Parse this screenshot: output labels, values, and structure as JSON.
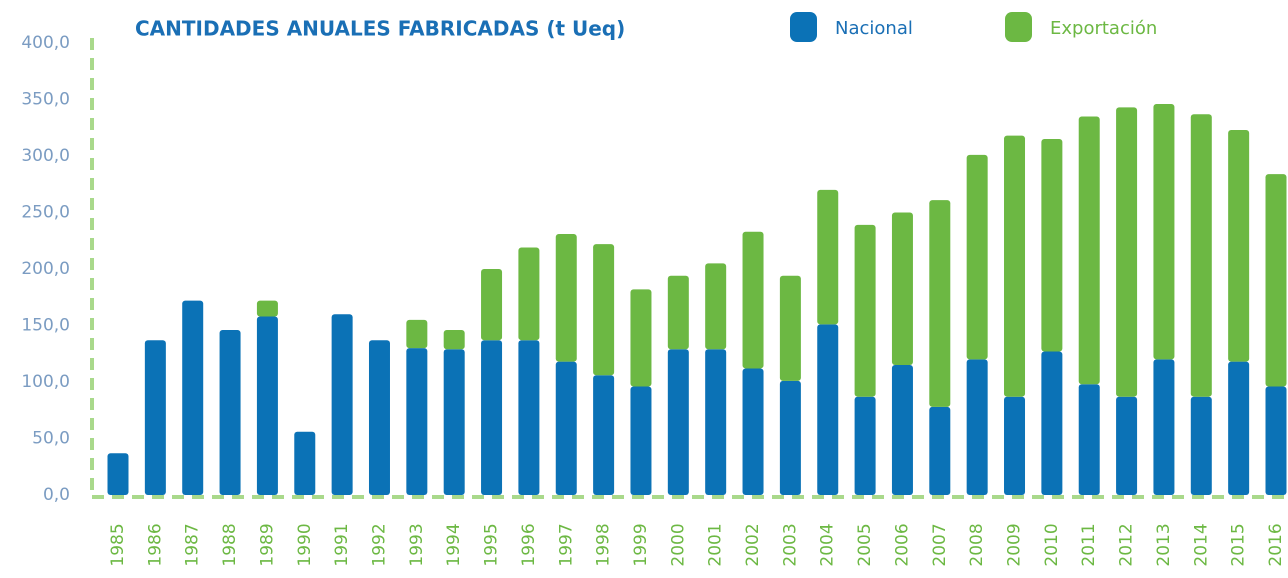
{
  "chart_data": {
    "type": "bar",
    "stacked": true,
    "title": "CANTIDADES ANUALES FABRICADAS (t Ueq)",
    "categories": [
      "1985",
      "1986",
      "1987",
      "1988",
      "1989",
      "1990",
      "1991",
      "1992",
      "1993",
      "1994",
      "1995",
      "1996",
      "1997",
      "1998",
      "1999",
      "2000",
      "2001",
      "2002",
      "2003",
      "2004",
      "2005",
      "2006",
      "2007",
      "2008",
      "2009",
      "2010",
      "2011",
      "2012",
      "2013",
      "2014",
      "2015",
      "2016"
    ],
    "series": [
      {
        "name": "Nacional",
        "color": "#0b72b6",
        "values": [
          37,
          137,
          172,
          146,
          158,
          56,
          160,
          137,
          130,
          129,
          137,
          137,
          118,
          106,
          96,
          129,
          129,
          112,
          101,
          151,
          87,
          115,
          78,
          120,
          87,
          127,
          98,
          87,
          120,
          87,
          118,
          96
        ]
      },
      {
        "name": "Exportación",
        "color": "#6cb843",
        "values": [
          0,
          0,
          0,
          0,
          14,
          0,
          0,
          0,
          25,
          17,
          63,
          82,
          113,
          116,
          86,
          65,
          76,
          121,
          93,
          119,
          152,
          135,
          183,
          181,
          231,
          188,
          237,
          256,
          226,
          250,
          205,
          188
        ]
      }
    ],
    "ylim": [
      0,
      400
    ],
    "yticks": [
      {
        "value": 0,
        "label": "0,0"
      },
      {
        "value": 50,
        "label": "50,0"
      },
      {
        "value": 100,
        "label": "100,0"
      },
      {
        "value": 150,
        "label": "150,0"
      },
      {
        "value": 200,
        "label": "200,0"
      },
      {
        "value": 250,
        "label": "250,0"
      },
      {
        "value": 300,
        "label": "300,0"
      },
      {
        "value": 350,
        "label": "350,0"
      },
      {
        "value": 400,
        "label": "400,0"
      }
    ]
  }
}
